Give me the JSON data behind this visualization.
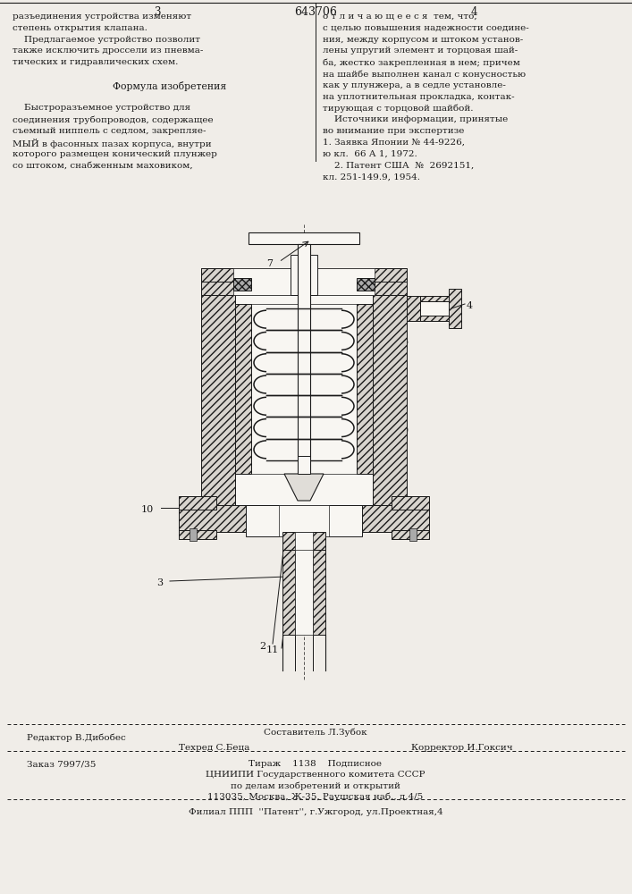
{
  "bg_color": "#f0ede8",
  "page_width": 7.07,
  "page_height": 10.0,
  "patent_number": "643706",
  "col_left_num": "3",
  "col_right_num": "4",
  "text_left": [
    [
      "разъединения устройства изменяют",
      false
    ],
    [
      "степень открытия клапана.",
      false
    ],
    [
      "    Предлагаемое устройство позволит",
      false
    ],
    [
      "также исключить дроссели из пневма-",
      false
    ],
    [
      "тических и гидравлических схем.",
      false
    ],
    [
      "",
      false
    ],
    [
      "        Формула изобретения",
      false
    ],
    [
      "",
      false
    ],
    [
      "    Быстроразъемное устройство для",
      false
    ],
    [
      "соединения трубопроводов, содержащее",
      false
    ],
    [
      "съемный ниппель с седлом, закрепляе-",
      false
    ],
    [
      "МЫЙ в фасонных пазах корпуса, внутри",
      false
    ],
    [
      "которого размещен конический плунжер",
      false
    ],
    [
      "со штоком, снабженным маховиком,",
      false
    ]
  ],
  "text_right": [
    [
      "о т л и ч а ю щ е е с я  тем, что,",
      false
    ],
    [
      "с целью повышения надежности соедине-",
      false
    ],
    [
      "ния, между корпусом и штоком установ-",
      false
    ],
    [
      "лены упругий элемент и торцовая шай-",
      false
    ],
    [
      "ба, жестко закрепленная в нем; причем",
      false
    ],
    [
      "на шайбе выполнен канал с конусностью",
      false
    ],
    [
      "как у плунжера, а в седле установле-",
      false
    ],
    [
      "на уплотнительная прокладка, контак-",
      false
    ],
    [
      "тирующая с торцовой шайбой.",
      false
    ],
    [
      "    Источники информации, принятые",
      false
    ],
    [
      "во внимание при экспертизе",
      false
    ],
    [
      "1. Заявка Японии № 44-9226,",
      false
    ],
    [
      "ю кл.  66 А 1, 1972.",
      false
    ],
    [
      "    2. Патент США  №  2692151,",
      false
    ],
    [
      "кл. 251-149.9, 1954.",
      false
    ]
  ],
  "footer_editor": "Редактор В.Дибобес",
  "footer_compiler": "Составитель Л.Зубок",
  "footer_techred": "Техред С.Беца",
  "footer_corrector": "Корректор И.Гоксич",
  "footer_order": "Заказ 7997/35",
  "footer_tirazh": "Тираж    1138    Подписное",
  "footer_org": "ЦНИИПИ Государственного комитета СССР",
  "footer_dept": "по делам изобретений и открытий",
  "footer_addr": "113035, Москва, Ж-35, Раушская наб., д.4/5",
  "footer_filial": "Филиал ППП  ''Патент'', г.Ужгород, ул.Проектная,4"
}
